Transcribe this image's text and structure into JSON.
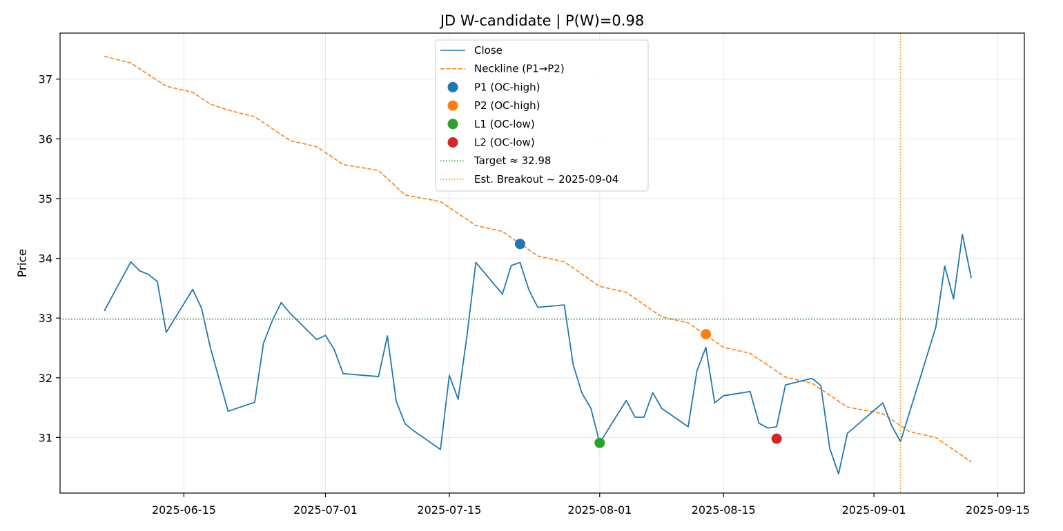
{
  "chart_data": {
    "type": "line",
    "title": "JD W-candidate | P(W)=0.98",
    "xlabel": "",
    "ylabel": "Price",
    "x_range": [
      "2025-06-01",
      "2025-09-18"
    ],
    "ylim": [
      30.07,
      37.77
    ],
    "grid": true,
    "legend_position": "upper center",
    "x_ticks": [
      "2025-06-15",
      "2025-07-01",
      "2025-07-15",
      "2025-08-01",
      "2025-08-15",
      "2025-09-01",
      "2025-09-15"
    ],
    "y_ticks": [
      31,
      32,
      33,
      34,
      35,
      36,
      37
    ],
    "colors": {
      "close": "#1f77b4",
      "neckline": "#ff7f0e",
      "p1": "#1f77b4",
      "p2": "#ff7f0e",
      "l1": "#2ca02c",
      "l2": "#d62728",
      "target": "#2ca02c",
      "breakout": "#ff7f0e"
    },
    "series": [
      {
        "name": "Close",
        "style": "solid",
        "points": [
          [
            "2025-06-06",
            33.12
          ],
          [
            "2025-06-09",
            33.94
          ],
          [
            "2025-06-10",
            33.79
          ],
          [
            "2025-06-11",
            33.73
          ],
          [
            "2025-06-12",
            33.61
          ],
          [
            "2025-06-13",
            32.76
          ],
          [
            "2025-06-16",
            33.48
          ],
          [
            "2025-06-17",
            33.16
          ],
          [
            "2025-06-18",
            32.5
          ],
          [
            "2025-06-20",
            31.44
          ],
          [
            "2025-06-23",
            31.59
          ],
          [
            "2025-06-24",
            32.58
          ],
          [
            "2025-06-25",
            32.96
          ],
          [
            "2025-06-26",
            33.26
          ],
          [
            "2025-06-27",
            33.08
          ],
          [
            "2025-06-30",
            32.64
          ],
          [
            "2025-07-01",
            32.71
          ],
          [
            "2025-07-02",
            32.47
          ],
          [
            "2025-07-03",
            32.07
          ],
          [
            "2025-07-07",
            32.02
          ],
          [
            "2025-07-08",
            32.7
          ],
          [
            "2025-07-09",
            31.61
          ],
          [
            "2025-07-10",
            31.23
          ],
          [
            "2025-07-11",
            31.11
          ],
          [
            "2025-07-14",
            30.8
          ],
          [
            "2025-07-15",
            32.04
          ],
          [
            "2025-07-16",
            31.64
          ],
          [
            "2025-07-17",
            32.71
          ],
          [
            "2025-07-18",
            33.93
          ],
          [
            "2025-07-21",
            33.4
          ],
          [
            "2025-07-22",
            33.88
          ],
          [
            "2025-07-23",
            33.93
          ],
          [
            "2025-07-24",
            33.47
          ],
          [
            "2025-07-25",
            33.18
          ],
          [
            "2025-07-28",
            33.22
          ],
          [
            "2025-07-29",
            32.22
          ],
          [
            "2025-07-30",
            31.74
          ],
          [
            "2025-07-31",
            31.49
          ],
          [
            "2025-08-01",
            30.91
          ],
          [
            "2025-08-04",
            31.62
          ],
          [
            "2025-08-05",
            31.34
          ],
          [
            "2025-08-06",
            31.34
          ],
          [
            "2025-08-07",
            31.75
          ],
          [
            "2025-08-08",
            31.49
          ],
          [
            "2025-08-11",
            31.18
          ],
          [
            "2025-08-12",
            32.12
          ],
          [
            "2025-08-13",
            32.51
          ],
          [
            "2025-08-14",
            31.58
          ],
          [
            "2025-08-15",
            31.7
          ],
          [
            "2025-08-18",
            31.77
          ],
          [
            "2025-08-19",
            31.24
          ],
          [
            "2025-08-20",
            31.16
          ],
          [
            "2025-08-21",
            31.18
          ],
          [
            "2025-08-22",
            31.88
          ],
          [
            "2025-08-25",
            31.99
          ],
          [
            "2025-08-26",
            31.87
          ],
          [
            "2025-08-27",
            30.82
          ],
          [
            "2025-08-28",
            30.39
          ],
          [
            "2025-08-29",
            31.07
          ],
          [
            "2025-09-02",
            31.58
          ],
          [
            "2025-09-03",
            31.2
          ],
          [
            "2025-09-04",
            30.93
          ],
          [
            "2025-09-08",
            32.85
          ],
          [
            "2025-09-09",
            33.87
          ],
          [
            "2025-09-10",
            33.32
          ],
          [
            "2025-09-11",
            34.4
          ],
          [
            "2025-09-12",
            33.67
          ]
        ]
      },
      {
        "name": "Neckline (P1→P2)",
        "style": "dashed",
        "points": [
          [
            "2025-06-06",
            37.38
          ],
          [
            "2025-06-09",
            37.27
          ],
          [
            "2025-06-13",
            36.88
          ],
          [
            "2025-06-16",
            36.78
          ],
          [
            "2025-06-18",
            36.58
          ],
          [
            "2025-06-20",
            36.48
          ],
          [
            "2025-06-23",
            36.37
          ],
          [
            "2025-06-27",
            35.97
          ],
          [
            "2025-06-30",
            35.87
          ],
          [
            "2025-07-03",
            35.57
          ],
          [
            "2025-07-07",
            35.47
          ],
          [
            "2025-07-10",
            35.06
          ],
          [
            "2025-07-14",
            34.95
          ],
          [
            "2025-07-18",
            34.55
          ],
          [
            "2025-07-21",
            34.45
          ],
          [
            "2025-07-25",
            34.04
          ],
          [
            "2025-07-28",
            33.94
          ],
          [
            "2025-08-01",
            33.53
          ],
          [
            "2025-08-04",
            33.43
          ],
          [
            "2025-08-08",
            33.02
          ],
          [
            "2025-08-11",
            32.92
          ],
          [
            "2025-08-15",
            32.51
          ],
          [
            "2025-08-18",
            32.41
          ],
          [
            "2025-08-22",
            32.01
          ],
          [
            "2025-08-25",
            31.91
          ],
          [
            "2025-08-29",
            31.51
          ],
          [
            "2025-09-02",
            31.4
          ],
          [
            "2025-09-05",
            31.1
          ],
          [
            "2025-09-08",
            31.0
          ],
          [
            "2025-09-12",
            30.59
          ]
        ]
      }
    ],
    "markers": [
      {
        "name": "P1 (OC-high)",
        "x": "2025-07-23",
        "y": 34.24
      },
      {
        "name": "P2 (OC-high)",
        "x": "2025-08-13",
        "y": 32.73
      },
      {
        "name": "L1 (OC-low)",
        "x": "2025-08-01",
        "y": 30.91
      },
      {
        "name": "L2 (OC-low)",
        "x": "2025-08-21",
        "y": 30.98
      }
    ],
    "reference_lines": [
      {
        "name": "Target ≈ 32.98",
        "orientation": "horizontal",
        "value": 32.98
      },
      {
        "name": "Est. Breakout ~ 2025-09-04",
        "orientation": "vertical",
        "value": "2025-09-04"
      }
    ]
  }
}
